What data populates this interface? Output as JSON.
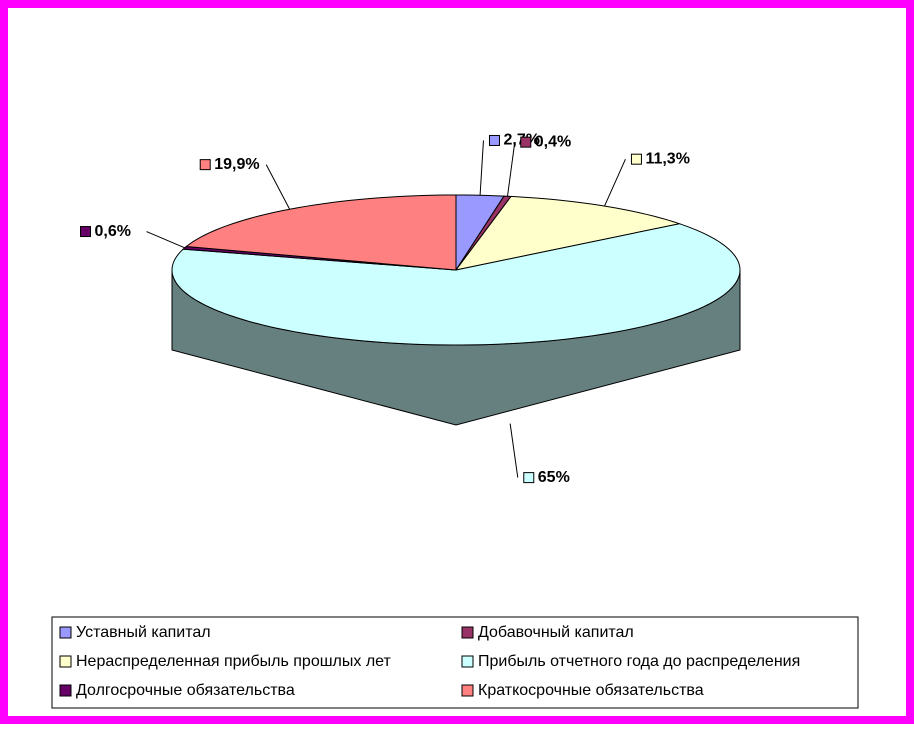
{
  "chart_data": {
    "type": "pie",
    "categories": [
      "Уставный капитал",
      "Добавочный капитал",
      "Нераспределенная прибыль прошлых лет",
      "Прибыль отчетного года до распределения",
      "Долгосрочные обязательства",
      "Краткосрочные обязательства"
    ],
    "values": [
      2.7,
      0.4,
      11.3,
      65,
      0.6,
      19.9
    ],
    "value_labels": [
      "2,7%",
      "0,4%",
      "11,3%",
      "65%",
      "0,6%",
      "19,9%"
    ],
    "colors": [
      "#9999ff",
      "#993366",
      "#ffffcc",
      "#ccffff",
      "#660066",
      "#ff8080"
    ],
    "legend": "bottom"
  }
}
